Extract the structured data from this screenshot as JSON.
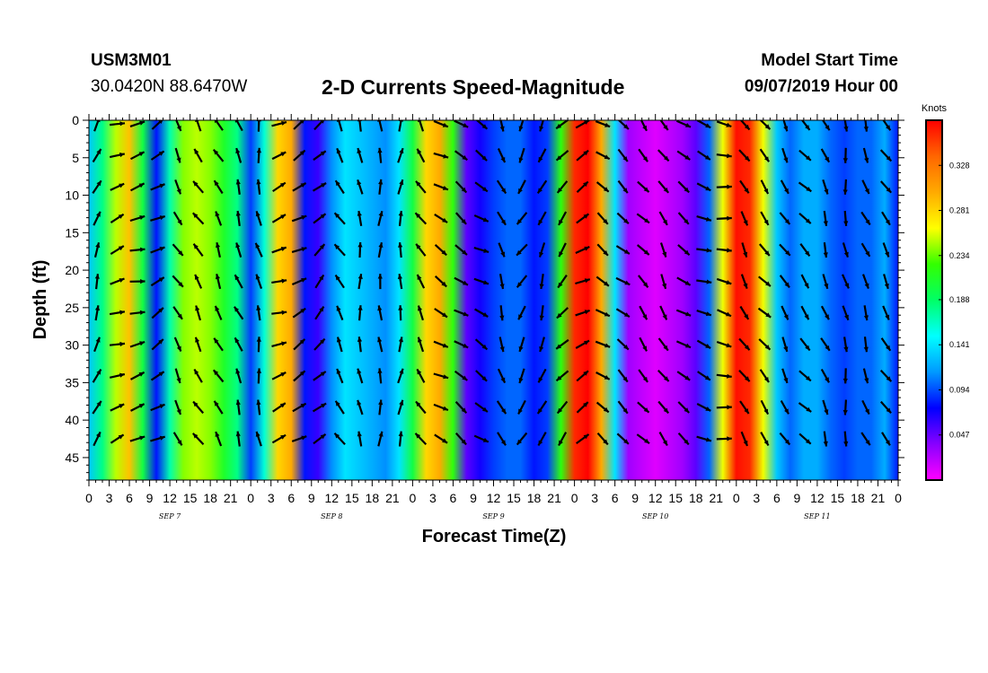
{
  "header": {
    "station_id": "USM3M01",
    "coordinates": "30.0420N 88.6470W",
    "title": "2-D Currents Speed-Magnitude",
    "model_start_label": "Model Start Time",
    "model_start_value": "09/07/2019 Hour 00"
  },
  "colors": {
    "background": "#ffffff",
    "colormap": [
      "#ff00ff",
      "#8800ff",
      "#0000ff",
      "#0099ff",
      "#00ffff",
      "#00ff66",
      "#33ff00",
      "#ffff00",
      "#ffaa00",
      "#ff6600",
      "#ff0000"
    ],
    "arrow": "#000000"
  },
  "chart_data": {
    "type": "heatmap",
    "title": "2-D Currents Speed-Magnitude",
    "xlabel": "Forecast Time(Z)",
    "ylabel": "Depth (ft)",
    "x_range_hours": [
      0,
      120
    ],
    "y_range_ft": [
      0,
      48
    ],
    "y_inverted": true,
    "x_tick_labels": [
      "0",
      "3",
      "6",
      "9",
      "12",
      "15",
      "18",
      "21",
      "0",
      "3",
      "6",
      "9",
      "12",
      "15",
      "18",
      "21",
      "0",
      "3",
      "6",
      "9",
      "12",
      "15",
      "18",
      "21",
      "0",
      "3",
      "6",
      "9",
      "12",
      "15",
      "18",
      "21",
      "0",
      "3",
      "6",
      "9",
      "12",
      "15",
      "18",
      "21",
      "0"
    ],
    "x_date_labels": [
      "SEP 7",
      "SEP 8",
      "SEP 9",
      "SEP 10",
      "SEP 11"
    ],
    "y_tick_labels": [
      "0",
      "5",
      "10",
      "15",
      "20",
      "25",
      "30",
      "35",
      "40",
      "45"
    ],
    "y_tick_values": [
      0,
      5,
      10,
      15,
      20,
      25,
      30,
      35,
      40,
      45
    ],
    "colorbar": {
      "title": "Knots",
      "tick_labels": [
        "0.047",
        "0.094",
        "0.141",
        "0.188",
        "0.234",
        "0.281",
        "0.328"
      ],
      "tick_values": [
        0.047,
        0.094,
        0.141,
        0.188,
        0.234,
        0.281,
        0.328
      ],
      "range": [
        0,
        0.375
      ]
    },
    "speed_profile_by_hour": {
      "hours": [
        0,
        2,
        4,
        6,
        8,
        10,
        12,
        14,
        16,
        18,
        20,
        22,
        24,
        26,
        28,
        30,
        32,
        34,
        36,
        38,
        40,
        42,
        44,
        46,
        48,
        50,
        52,
        54,
        56,
        58,
        60,
        62,
        64,
        66,
        68,
        70,
        72,
        74,
        76,
        78,
        80,
        82,
        84,
        86,
        88,
        90,
        92,
        94,
        96,
        98,
        100,
        102,
        104,
        106,
        108,
        110,
        112,
        114,
        116,
        118,
        120
      ],
      "speed_knots": [
        0.13,
        0.18,
        0.25,
        0.29,
        0.2,
        0.08,
        0.17,
        0.24,
        0.25,
        0.24,
        0.21,
        0.18,
        0.09,
        0.16,
        0.28,
        0.3,
        0.08,
        0.06,
        0.11,
        0.14,
        0.13,
        0.12,
        0.11,
        0.14,
        0.2,
        0.28,
        0.3,
        0.22,
        0.05,
        0.07,
        0.09,
        0.1,
        0.1,
        0.08,
        0.09,
        0.22,
        0.36,
        0.38,
        0.3,
        0.14,
        0.03,
        0.02,
        0.01,
        0.02,
        0.03,
        0.05,
        0.1,
        0.26,
        0.37,
        0.36,
        0.26,
        0.13,
        0.1,
        0.12,
        0.12,
        0.1,
        0.09,
        0.1,
        0.1,
        0.12,
        0.08
      ]
    },
    "direction_by_hour": {
      "hours": [
        0,
        3,
        6,
        9,
        12,
        15,
        18,
        21,
        24,
        27,
        30,
        33,
        36,
        39,
        42,
        45,
        48,
        51,
        54,
        57,
        60,
        63,
        66,
        69,
        72,
        75,
        78,
        81,
        84,
        87,
        90,
        93,
        96,
        99,
        102,
        105,
        108,
        111,
        114,
        117
      ],
      "bearing_deg": [
        20,
        70,
        75,
        60,
        150,
        330,
        335,
        340,
        350,
        70,
        60,
        45,
        330,
        355,
        0,
        5,
        330,
        120,
        125,
        120,
        160,
        210,
        200,
        220,
        60,
        125,
        130,
        140,
        150,
        125,
        110,
        100,
        150,
        140,
        150,
        140,
        160,
        170,
        160,
        150
      ]
    }
  }
}
